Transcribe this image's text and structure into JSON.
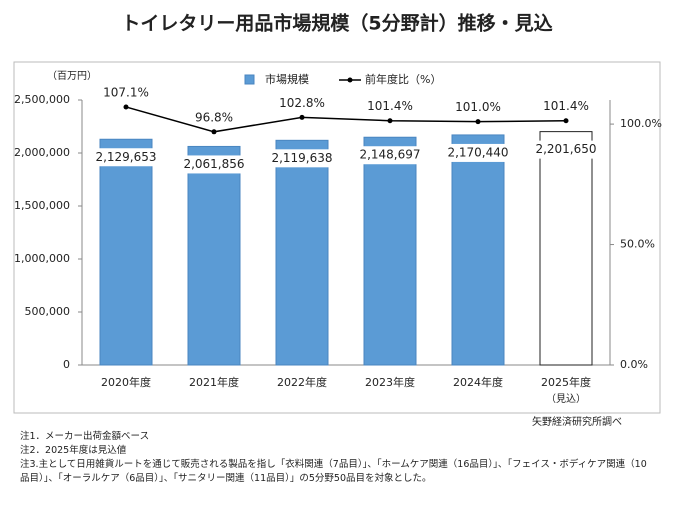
{
  "chart_data": {
    "type": "bar",
    "title": "トイレタリー用品市場規模（5分野計）推移・見込",
    "y_label": "（百万円）",
    "categories": [
      "2020年度",
      "2021年度",
      "2022年度",
      "2023年度",
      "2024年度",
      "2025年度"
    ],
    "category_notes": [
      null,
      null,
      null,
      null,
      null,
      "（見込）"
    ],
    "series": [
      {
        "name": "市場規模",
        "type": "bar",
        "color": "#5b9bd5",
        "bar_colors": [
          "#5b9bd5",
          "#5b9bd5",
          "#5b9bd5",
          "#5b9bd5",
          "#5b9bd5",
          "#ffffff"
        ],
        "values": [
          2129653,
          2061856,
          2119638,
          2148697,
          2170440,
          2201650
        ],
        "value_labels": [
          "2,129,653",
          "2,061,856",
          "2,119,638",
          "2,148,697",
          "2,170,440",
          "2,201,650"
        ]
      },
      {
        "name": "前年度比（%）",
        "type": "line",
        "axis": "y2",
        "color": "#000000",
        "values": [
          107.1,
          96.8,
          102.8,
          101.4,
          101.0,
          101.4
        ],
        "value_labels": [
          "107.1%",
          "96.8%",
          "102.8%",
          "101.4%",
          "101.0%",
          "101.4%"
        ]
      }
    ],
    "ylim": [
      0,
      2500000
    ],
    "yticks": [
      0,
      {
        "value": 500000,
        "label": "500,000"
      },
      {
        "value": 1000000,
        "label": "1,000,000"
      },
      {
        "value": 1500000,
        "label": "1,500,000"
      },
      {
        "value": 2000000,
        "label": "2,000,000"
      },
      {
        "value": 2500000,
        "label": "2,500,000"
      }
    ],
    "y2lim": [
      0,
      110
    ],
    "y2ticks": [
      {
        "value": 0,
        "label": "0.0%"
      },
      {
        "value": 50,
        "label": "50.0%"
      },
      {
        "value": 100,
        "label": "100.0%"
      }
    ],
    "notes": [
      "注1．メーカー出荷金額ベース",
      "注2．2025年度は見込値",
      "注3.主として日用雑貨ルートを通じて販売される製品を指し「衣料関連（7品目）」、「ホームケア関連（16品目）」、「フェイス・ボディケア関連（10品目）」、「オーラルケア（6品目）」、「サニタリー関連（11品目）」の5分野50品目を対象とした。"
    ],
    "source": "矢野経済研究所調べ"
  }
}
